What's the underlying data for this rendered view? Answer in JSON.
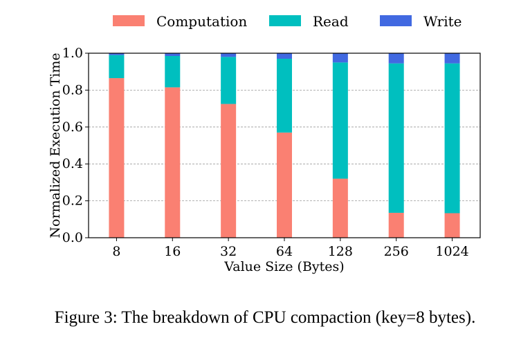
{
  "chart_data": {
    "type": "bar",
    "stacked": true,
    "categories": [
      "8",
      "16",
      "32",
      "64",
      "128",
      "256",
      "1024"
    ],
    "series": [
      {
        "name": "Computation",
        "color": "#FA8072",
        "values": [
          0.865,
          0.815,
          0.725,
          0.57,
          0.32,
          0.135,
          0.133
        ]
      },
      {
        "name": "Read",
        "color": "#00BFBF",
        "values": [
          0.125,
          0.17,
          0.255,
          0.4,
          0.63,
          0.81,
          0.812
        ]
      },
      {
        "name": "Write",
        "color": "#4169E1",
        "values": [
          0.01,
          0.015,
          0.02,
          0.03,
          0.05,
          0.055,
          0.055
        ]
      }
    ],
    "title": "",
    "xlabel": "Value Size (Bytes)",
    "ylabel": "Normalized Execution Time",
    "ylim": [
      0,
      1.0
    ],
    "yticks": [
      "0.0",
      "0.2",
      "0.4",
      "0.6",
      "0.8",
      "1.0"
    ],
    "grid": true,
    "legend_position": "top-center"
  },
  "caption": "Figure 3: The breakdown of CPU compaction (key=8 bytes)."
}
